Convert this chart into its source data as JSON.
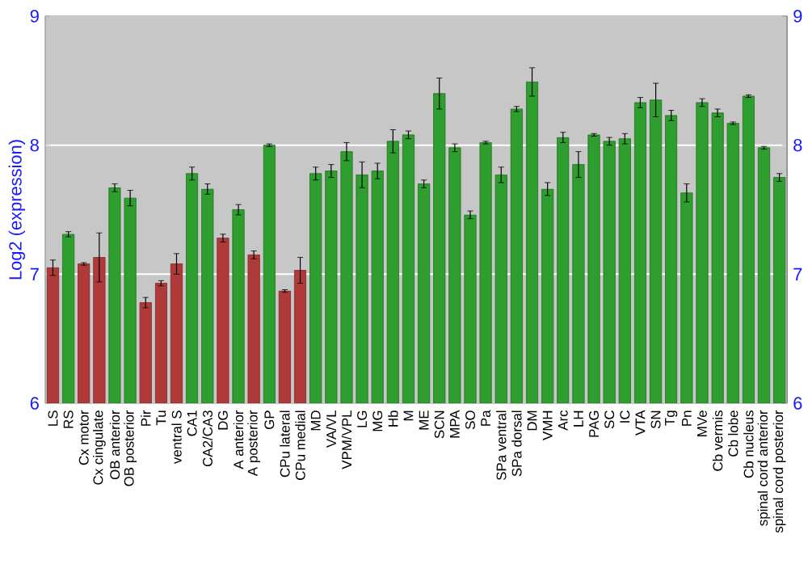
{
  "chart_data": {
    "type": "bar",
    "ylabel": "Log2 (expression)",
    "categories": [
      "LS",
      "RS",
      "Cx motor",
      "Cx cingulate",
      "OB anterior",
      "OB posterior",
      "Pir",
      "Tu",
      "ventral S",
      "CA1",
      "CA2/CA3",
      "DG",
      "A anterior",
      "A posterior",
      "GP",
      "CPu lateral",
      "CPu medial",
      "MD",
      "VA/VL",
      "VPM/VPL",
      "LG",
      "MG",
      "Hb",
      "M",
      "ME",
      "SCN",
      "MPA",
      "SO",
      "Pa",
      "SPa ventral",
      "SPa dorsal",
      "DM",
      "VMH",
      "Arc",
      "LH",
      "PAG",
      "SC",
      "IC",
      "VTA",
      "SN",
      "Tg",
      "Pn",
      "MVe",
      "Cb vermis",
      "Cb lobe",
      "Cb nucleus",
      "spinal cord anterior",
      "spinal cord posterior"
    ],
    "values": [
      7.05,
      7.31,
      7.08,
      7.13,
      7.67,
      7.59,
      6.78,
      6.93,
      7.08,
      7.78,
      7.66,
      7.28,
      7.5,
      7.15,
      8.0,
      6.87,
      7.03,
      7.78,
      7.8,
      7.95,
      7.77,
      7.8,
      8.03,
      8.08,
      7.7,
      8.4,
      7.98,
      7.46,
      8.02,
      7.77,
      8.28,
      8.49,
      7.66,
      8.06,
      7.85,
      8.08,
      8.03,
      8.05,
      8.33,
      8.35,
      8.23,
      7.63,
      8.33,
      8.25,
      8.17,
      8.38,
      7.98,
      7.75
    ],
    "errors": [
      0.06,
      0.02,
      0.01,
      0.19,
      0.03,
      0.06,
      0.04,
      0.02,
      0.08,
      0.05,
      0.04,
      0.03,
      0.04,
      0.03,
      0.01,
      0.01,
      0.1,
      0.05,
      0.05,
      0.07,
      0.1,
      0.06,
      0.09,
      0.03,
      0.03,
      0.12,
      0.03,
      0.03,
      0.01,
      0.06,
      0.02,
      0.11,
      0.05,
      0.04,
      0.1,
      0.01,
      0.03,
      0.04,
      0.04,
      0.13,
      0.04,
      0.07,
      0.03,
      0.03,
      0.01,
      0.01,
      0.01,
      0.03
    ],
    "colors": [
      "#b03a3a",
      "#2e9e2e",
      "#b03a3a",
      "#b03a3a",
      "#2e9e2e",
      "#2e9e2e",
      "#b03a3a",
      "#b03a3a",
      "#b03a3a",
      "#2e9e2e",
      "#2e9e2e",
      "#b03a3a",
      "#2e9e2e",
      "#b03a3a",
      "#2e9e2e",
      "#b03a3a",
      "#b03a3a",
      "#2e9e2e",
      "#2e9e2e",
      "#2e9e2e",
      "#2e9e2e",
      "#2e9e2e",
      "#2e9e2e",
      "#2e9e2e",
      "#2e9e2e",
      "#2e9e2e",
      "#2e9e2e",
      "#2e9e2e",
      "#2e9e2e",
      "#2e9e2e",
      "#2e9e2e",
      "#2e9e2e",
      "#2e9e2e",
      "#2e9e2e",
      "#2e9e2e",
      "#2e9e2e",
      "#2e9e2e",
      "#2e9e2e",
      "#2e9e2e",
      "#2e9e2e",
      "#2e9e2e",
      "#2e9e2e",
      "#2e9e2e",
      "#2e9e2e",
      "#2e9e2e",
      "#2e9e2e",
      "#2e9e2e",
      "#2e9e2e"
    ],
    "ylim": [
      6,
      9
    ],
    "yticks": [
      6,
      7,
      8,
      9
    ],
    "y2lim": [
      6,
      9
    ],
    "y2ticks": [
      6,
      7,
      8,
      9
    ],
    "grid": "y"
  }
}
